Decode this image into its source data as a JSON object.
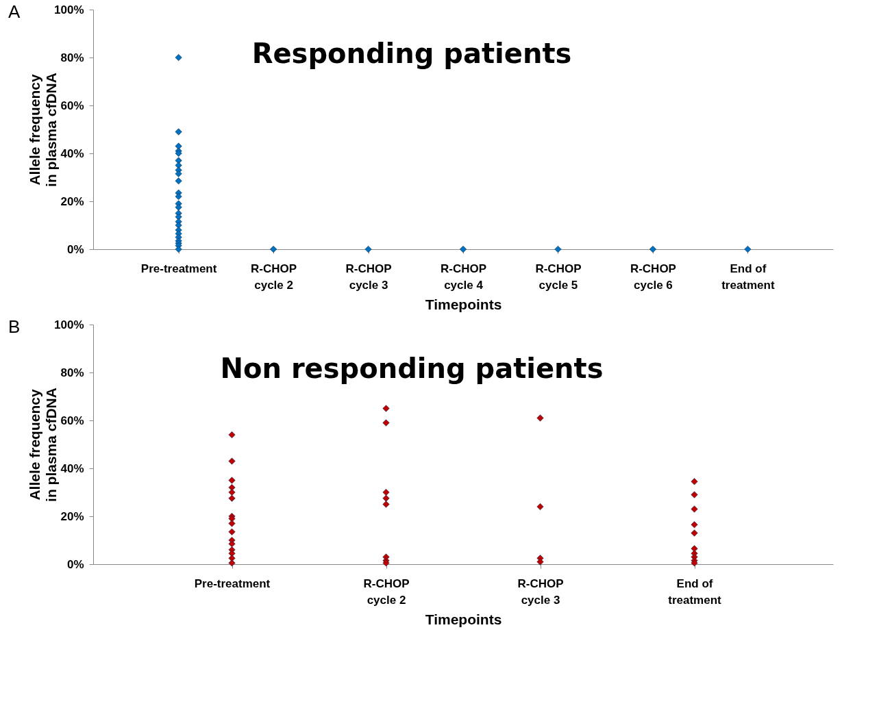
{
  "chart_data": [
    {
      "type": "scatter",
      "title": "Responding patients",
      "xlabel": "Timepoints",
      "ylabel": "Allele frequency\nin plasma cfDNA",
      "annotations": [
        "A"
      ],
      "categories": [
        "Pre-treatment",
        "R-CHOP\ncycle 2",
        "R-CHOP\ncycle 3",
        "R-CHOP\ncycle 4",
        "R-CHOP\ncycle 5",
        "R-CHOP\ncycle 6",
        "End of\ntreatment"
      ],
      "marker": "diamond",
      "grid": false,
      "legend": false,
      "ylim": [
        0,
        100
      ],
      "yticks": [
        {
          "value": 0,
          "label": "0%"
        },
        {
          "value": 20,
          "label": "20%"
        },
        {
          "value": 40,
          "label": "40%"
        },
        {
          "value": 60,
          "label": "60%"
        },
        {
          "value": 80,
          "label": "80%"
        },
        {
          "value": 100,
          "label": "100%"
        }
      ],
      "series": [
        {
          "color": "#0070c0",
          "x": [
            "Pre-treatment",
            "Pre-treatment",
            "Pre-treatment",
            "Pre-treatment",
            "Pre-treatment",
            "Pre-treatment",
            "Pre-treatment",
            "Pre-treatment",
            "Pre-treatment",
            "Pre-treatment",
            "Pre-treatment",
            "Pre-treatment",
            "Pre-treatment",
            "Pre-treatment",
            "Pre-treatment",
            "Pre-treatment",
            "Pre-treatment",
            "Pre-treatment",
            "Pre-treatment",
            "Pre-treatment",
            "Pre-treatment",
            "Pre-treatment",
            "Pre-treatment",
            "Pre-treatment",
            "Pre-treatment",
            "R-CHOP\ncycle 2",
            "R-CHOP\ncycle 3",
            "R-CHOP\ncycle 4",
            "R-CHOP\ncycle 5",
            "R-CHOP\ncycle 6",
            "End of\ntreatment"
          ],
          "values": [
            80,
            49,
            43,
            41,
            40,
            37,
            35,
            33,
            31.5,
            28.5,
            23.5,
            22,
            19,
            17.5,
            15,
            13.5,
            11.5,
            10,
            8,
            6.5,
            5,
            3.5,
            2.5,
            1.5,
            0,
            0,
            0,
            0,
            0,
            0,
            0
          ]
        }
      ]
    },
    {
      "type": "scatter",
      "title": "Non responding patients",
      "xlabel": "Timepoints",
      "ylabel": "Allele frequency\nin plasma cfDNA",
      "annotations": [
        "B"
      ],
      "categories": [
        "Pre-treatment",
        "R-CHOP\ncycle 2",
        "R-CHOP\ncycle 3",
        "End of\ntreatment"
      ],
      "marker": "diamond",
      "grid": false,
      "legend": false,
      "ylim": [
        0,
        100
      ],
      "yticks": [
        {
          "value": 0,
          "label": "0%"
        },
        {
          "value": 20,
          "label": "20%"
        },
        {
          "value": 40,
          "label": "40%"
        },
        {
          "value": 60,
          "label": "60%"
        },
        {
          "value": 80,
          "label": "80%"
        },
        {
          "value": 100,
          "label": "100%"
        }
      ],
      "series": [
        {
          "color": "#c00000",
          "x": [
            "Pre-treatment",
            "Pre-treatment",
            "Pre-treatment",
            "Pre-treatment",
            "Pre-treatment",
            "Pre-treatment",
            "Pre-treatment",
            "Pre-treatment",
            "Pre-treatment",
            "Pre-treatment",
            "Pre-treatment",
            "Pre-treatment",
            "Pre-treatment",
            "Pre-treatment",
            "Pre-treatment",
            "Pre-treatment",
            "R-CHOP\ncycle 2",
            "R-CHOP\ncycle 2",
            "R-CHOP\ncycle 2",
            "R-CHOP\ncycle 2",
            "R-CHOP\ncycle 2",
            "R-CHOP\ncycle 2",
            "R-CHOP\ncycle 2",
            "R-CHOP\ncycle 2",
            "R-CHOP\ncycle 3",
            "R-CHOP\ncycle 3",
            "R-CHOP\ncycle 3",
            "R-CHOP\ncycle 3",
            "End of\ntreatment",
            "End of\ntreatment",
            "End of\ntreatment",
            "End of\ntreatment",
            "End of\ntreatment",
            "End of\ntreatment",
            "End of\ntreatment",
            "End of\ntreatment",
            "End of\ntreatment",
            "End of\ntreatment"
          ],
          "values": [
            54,
            43,
            35,
            32,
            30,
            27.5,
            20,
            19,
            17,
            13.5,
            10,
            8.5,
            6,
            4.5,
            2.5,
            0.5,
            65,
            59,
            30,
            27.5,
            25,
            3,
            1.5,
            0.5,
            61,
            24,
            2.5,
            1,
            34.5,
            29,
            23,
            16.5,
            13,
            6.5,
            4.5,
            3,
            1.5,
            0.5
          ]
        }
      ]
    }
  ]
}
